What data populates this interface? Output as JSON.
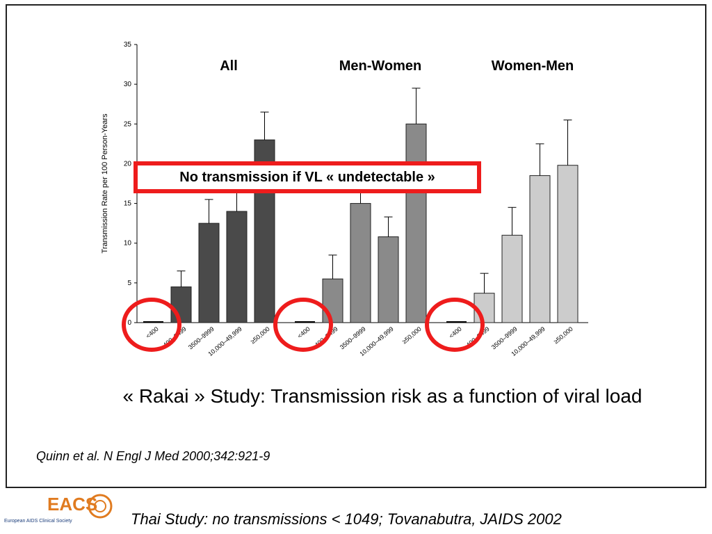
{
  "chart_data": {
    "type": "bar",
    "ylabel": "Transmission Rate per 100 Person-Years",
    "ylim": [
      0,
      35
    ],
    "yticks": [
      0,
      5,
      10,
      15,
      20,
      25,
      30,
      35
    ],
    "groups": [
      {
        "title": "All",
        "color": "#4a4a4a",
        "categories": [
          "<400",
          "400–3499",
          "3500–9999",
          "10,000–49,999",
          "≥50,000"
        ],
        "values": [
          0,
          4.5,
          12.5,
          14,
          23
        ],
        "errors": [
          0,
          6.5,
          15.5,
          16.5,
          26.5
        ]
      },
      {
        "title": "Men-Women",
        "color": "#8a8a8a",
        "categories": [
          "<400",
          "400–3499",
          "3500–9999",
          "10,000–49,999",
          "≥50,000"
        ],
        "values": [
          0,
          5.5,
          15,
          10.8,
          25
        ],
        "errors": [
          0,
          8.5,
          17.5,
          13.3,
          29.5
        ]
      },
      {
        "title": "Women-Men",
        "color": "#cccccc",
        "categories": [
          "<400",
          "400–3499",
          "3500–9999",
          "10,000–49,999",
          "≥50,000"
        ],
        "values": [
          0,
          3.7,
          11,
          18.5,
          19.8
        ],
        "errors": [
          0,
          6.2,
          14.5,
          22.5,
          25.5
        ]
      }
    ],
    "highlight_color": "#ee1c1c"
  },
  "callout_text": "No transmission if VL « undetectable »",
  "caption": "« Rakai » Study:  Transmission risk as a function of viral load",
  "citation": "Quinn et al. N Engl J Med 2000;342:921-9",
  "footer_note": "Thai Study: no transmissions < 1049; Tovanabutra, JAIDS 2002",
  "logo": {
    "mark": "EACS",
    "tagline": "European AIDS Clinical Society",
    "color": "#e07b20"
  }
}
